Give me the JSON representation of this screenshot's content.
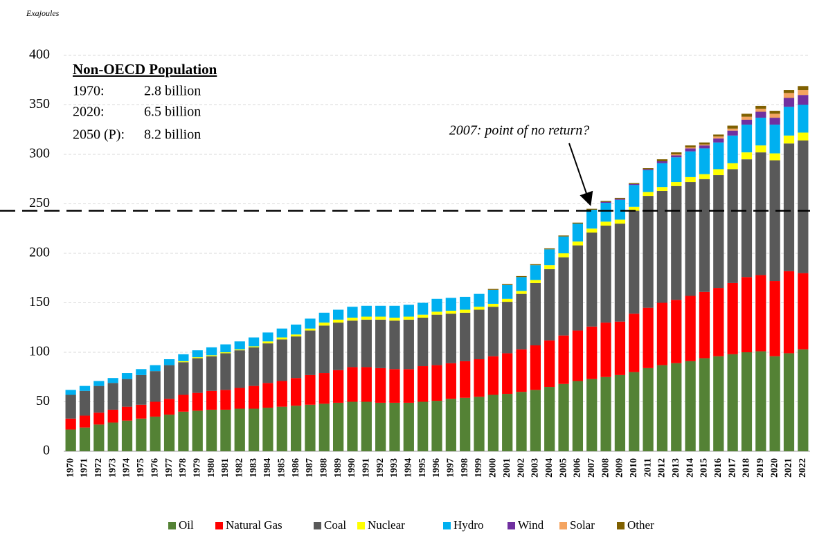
{
  "chart_data": {
    "type": "bar",
    "stacked": true,
    "y_label": "Exajoules",
    "ylim": [
      0,
      400
    ],
    "yticks": [
      0,
      50,
      100,
      150,
      200,
      250,
      300,
      350,
      400
    ],
    "grid": true,
    "reference_line": 243,
    "annotation": "2007: point of no return?",
    "inset": {
      "title": "Non-OECD Population",
      "rows": [
        [
          "1970:",
          "2.8 billion"
        ],
        [
          "2020:",
          "6.5 billion"
        ],
        [
          "2050 (P):",
          "8.2 billion"
        ]
      ]
    },
    "categories": [
      "1970",
      "1971",
      "1972",
      "1973",
      "1974",
      "1975",
      "1976",
      "1977",
      "1978",
      "1979",
      "1980",
      "1981",
      "1982",
      "1983",
      "1984",
      "1985",
      "1986",
      "1987",
      "1988",
      "1989",
      "1990",
      "1991",
      "1992",
      "1993",
      "1994",
      "1995",
      "1996",
      "1997",
      "1998",
      "1999",
      "2000",
      "2001",
      "2002",
      "2003",
      "2004",
      "2005",
      "2006",
      "2007",
      "2008",
      "2009",
      "2010",
      "2011",
      "2012",
      "2013",
      "2014",
      "2015",
      "2016",
      "2017",
      "2018",
      "2019",
      "2020",
      "2021",
      "2022"
    ],
    "series": [
      {
        "name": "Oil",
        "color": "#548235",
        "values": [
          22,
          24,
          27,
          29,
          31,
          33,
          35,
          37,
          40,
          41,
          42,
          42,
          43,
          43,
          44,
          45,
          46,
          47,
          48,
          49,
          50,
          50,
          49,
          49,
          49,
          50,
          51,
          53,
          54,
          55,
          57,
          58,
          60,
          62,
          65,
          68,
          71,
          73,
          75,
          77,
          80,
          84,
          87,
          89,
          91,
          94,
          96,
          98,
          100,
          101,
          96,
          99,
          103
        ]
      },
      {
        "name": "Natural Gas",
        "color": "#ff0000",
        "values": [
          11,
          12,
          12,
          13,
          14,
          14,
          15,
          16,
          17,
          18,
          19,
          20,
          21,
          23,
          25,
          26,
          28,
          30,
          31,
          33,
          35,
          35,
          35,
          34,
          34,
          36,
          36,
          36,
          37,
          38,
          39,
          41,
          43,
          45,
          47,
          49,
          51,
          53,
          55,
          54,
          59,
          61,
          63,
          64,
          66,
          67,
          69,
          72,
          76,
          77,
          76,
          83,
          77
        ]
      },
      {
        "name": "Coal",
        "color": "#595959",
        "values": [
          24,
          25,
          27,
          27,
          28,
          30,
          31,
          34,
          33,
          35,
          35,
          37,
          38,
          39,
          40,
          42,
          42,
          45,
          48,
          48,
          47,
          48,
          49,
          49,
          50,
          49,
          51,
          50,
          49,
          50,
          50,
          52,
          56,
          63,
          72,
          79,
          86,
          95,
          98,
          99,
          104,
          113,
          113,
          115,
          115,
          114,
          114,
          115,
          119,
          124,
          122,
          129,
          134
        ]
      },
      {
        "name": "Nuclear",
        "color": "#ffff00",
        "values": [
          0,
          0,
          0,
          0,
          0,
          0,
          0,
          0,
          1,
          1,
          1,
          1,
          1,
          1,
          2,
          2,
          2,
          2,
          3,
          3,
          3,
          3,
          3,
          3,
          3,
          3,
          3,
          3,
          3,
          3,
          3,
          3,
          3,
          3,
          4,
          4,
          4,
          4,
          4,
          4,
          4,
          4,
          4,
          4,
          5,
          5,
          6,
          6,
          7,
          7,
          7,
          8,
          8
        ]
      },
      {
        "name": "Hydro",
        "color": "#00b0f0",
        "values": [
          5,
          5,
          5,
          5,
          6,
          6,
          6,
          6,
          7,
          7,
          8,
          8,
          8,
          9,
          9,
          9,
          10,
          10,
          10,
          10,
          11,
          11,
          11,
          12,
          12,
          12,
          13,
          13,
          13,
          13,
          14,
          14,
          14,
          15,
          16,
          17,
          18,
          19,
          19,
          20,
          22,
          22,
          24,
          25,
          26,
          26,
          27,
          28,
          28,
          28,
          29,
          29,
          28
        ]
      },
      {
        "name": "Wind",
        "color": "#7030a0",
        "values": [
          0,
          0,
          0,
          0,
          0,
          0,
          0,
          0,
          0,
          0,
          0,
          0,
          0,
          0,
          0,
          0,
          0,
          0,
          0,
          0,
          0,
          0,
          0,
          0,
          0,
          0,
          0,
          0,
          0,
          0,
          0,
          0,
          0,
          0,
          0,
          0,
          0,
          0,
          1,
          1,
          1,
          1,
          2,
          2,
          3,
          3,
          4,
          5,
          5,
          6,
          7,
          9,
          10
        ]
      },
      {
        "name": "Solar",
        "color": "#f4a460",
        "values": [
          0,
          0,
          0,
          0,
          0,
          0,
          0,
          0,
          0,
          0,
          0,
          0,
          0,
          0,
          0,
          0,
          0,
          0,
          0,
          0,
          0,
          0,
          0,
          0,
          0,
          0,
          0,
          0,
          0,
          0,
          0,
          0,
          0,
          0,
          0,
          0,
          0,
          0,
          0,
          0,
          0,
          0,
          0,
          1,
          1,
          1,
          2,
          2,
          3,
          3,
          4,
          5,
          5
        ]
      },
      {
        "name": "Other",
        "color": "#7f6000",
        "values": [
          0,
          0,
          0,
          0,
          0,
          0,
          0,
          0,
          0,
          0,
          0,
          0,
          0,
          0,
          0,
          0,
          0,
          0,
          0,
          0,
          0,
          0,
          0,
          0,
          0,
          0,
          0,
          0,
          0,
          0,
          1,
          1,
          1,
          1,
          1,
          1,
          1,
          1,
          1,
          1,
          1,
          1,
          2,
          2,
          2,
          2,
          2,
          3,
          3,
          3,
          3,
          3,
          4
        ]
      }
    ]
  }
}
